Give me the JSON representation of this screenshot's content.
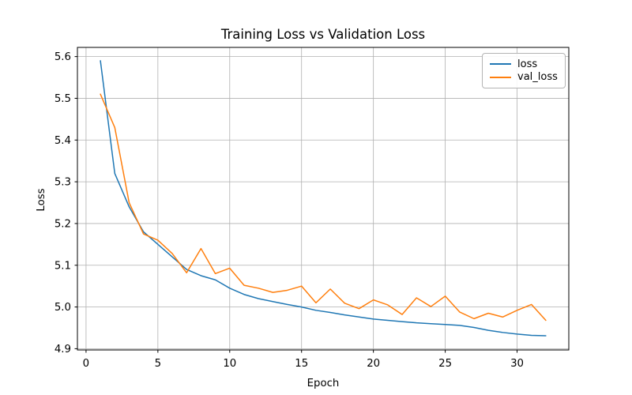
{
  "chart_data": {
    "type": "line",
    "title": "Training Loss vs Validation Loss",
    "xlabel": "Epoch",
    "ylabel": "Loss",
    "x": [
      1,
      2,
      3,
      4,
      5,
      6,
      7,
      8,
      9,
      10,
      11,
      12,
      13,
      14,
      15,
      16,
      17,
      18,
      19,
      20,
      21,
      22,
      23,
      24,
      25,
      26,
      27,
      28,
      29,
      30,
      31,
      32
    ],
    "series": [
      {
        "name": "loss",
        "color": "#1f77b4",
        "values": [
          5.59,
          5.32,
          5.24,
          5.18,
          5.15,
          5.12,
          5.09,
          5.075,
          5.065,
          5.045,
          5.03,
          5.02,
          5.013,
          5.006,
          5.0,
          4.992,
          4.987,
          4.981,
          4.976,
          4.971,
          4.968,
          4.965,
          4.962,
          4.96,
          4.958,
          4.956,
          4.951,
          4.944,
          4.939,
          4.935,
          4.932,
          4.931
        ]
      },
      {
        "name": "val_loss",
        "color": "#ff7f0e",
        "values": [
          5.51,
          5.43,
          5.25,
          5.175,
          5.16,
          5.128,
          5.082,
          5.14,
          5.08,
          5.093,
          5.052,
          5.045,
          5.035,
          5.04,
          5.05,
          5.01,
          5.043,
          5.009,
          4.996,
          5.017,
          5.005,
          4.982,
          5.022,
          5.001,
          5.026,
          4.988,
          4.972,
          4.985,
          4.976,
          4.992,
          5.006,
          4.968
        ]
      }
    ],
    "xlim": [
      -0.6,
      33.6
    ],
    "ylim": [
      4.897,
      5.622
    ],
    "x_ticks": [
      0,
      5,
      10,
      15,
      20,
      25,
      30
    ],
    "y_ticks": [
      4.9,
      5.0,
      5.1,
      5.2,
      5.3,
      5.4,
      5.5,
      5.6
    ],
    "grid": true,
    "legend_position": "upper right",
    "colors": {
      "grid": "#b0b0b0",
      "spine": "#000000",
      "text": "#000000",
      "background": "#ffffff"
    }
  }
}
